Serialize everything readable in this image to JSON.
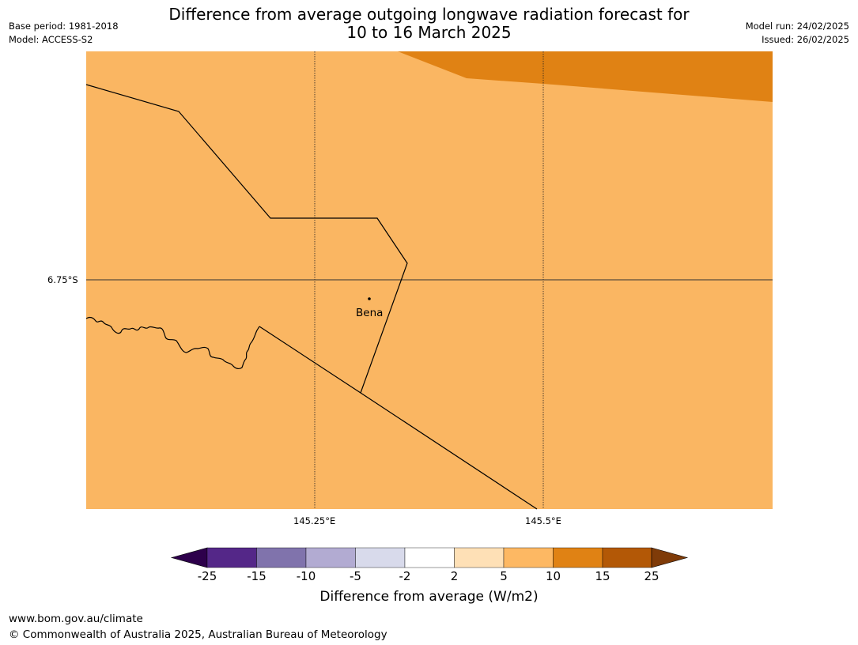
{
  "title": {
    "line1": "Difference from average outgoing longwave radiation forecast for",
    "line2": "10 to 16 March 2025"
  },
  "meta_left": {
    "base_period": "Base period: 1981-2018",
    "model": "Model: ACCESS-S2"
  },
  "meta_right": {
    "model_run": "Model run: 24/02/2025",
    "issued": "Issued: 26/02/2025"
  },
  "map": {
    "lat_labels": [
      "6.75°S"
    ],
    "lon_labels": [
      "145.25°E",
      "145.5°E"
    ],
    "place": {
      "name": "Bena"
    },
    "colors": {
      "fill_5_10": "#fab662",
      "fill_10_15": "#e08214",
      "gridline": "#333333",
      "border": "#000000"
    }
  },
  "colorbar": {
    "ticks": [
      "-25",
      "-15",
      "-10",
      "-5",
      "-2",
      "2",
      "5",
      "10",
      "15",
      "25"
    ],
    "colors": [
      "#2d004b",
      "#542788",
      "#8073ac",
      "#b2abd2",
      "#d8daeb",
      "#ffffff",
      "#fee0b6",
      "#fdb863",
      "#e08214",
      "#b35806",
      "#7f3b08"
    ],
    "label": "Difference from average (W/m2)"
  },
  "footer": {
    "url": "www.bom.gov.au/climate",
    "copyright": "© Commonwealth of Australia 2025, Australian Bureau of Meteorology"
  }
}
